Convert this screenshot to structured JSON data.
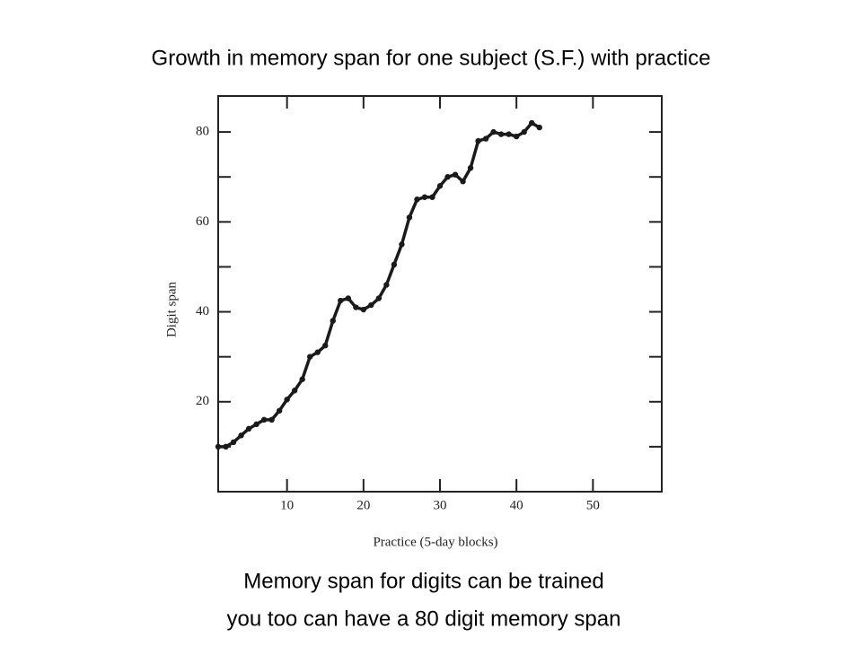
{
  "chart_data": {
    "type": "line",
    "title": "Growth in memory span for one subject (S.F.) with practice",
    "x_label": "Practice (5-day blocks)",
    "y_label": "Digit span",
    "caption": [
      "Memory span for digits can be trained",
      "you too can have a 80 digit memory span"
    ],
    "x": [
      1,
      2,
      3,
      4,
      5,
      6,
      7,
      8,
      9,
      10,
      11,
      12,
      13,
      14,
      15,
      16,
      17,
      18,
      19,
      20,
      21,
      22,
      23,
      24,
      25,
      26,
      27,
      28,
      29,
      30,
      31,
      32,
      33,
      34,
      35,
      36,
      37,
      38,
      39,
      40,
      41,
      42,
      43
    ],
    "values": [
      10,
      10,
      11,
      12.5,
      14,
      15,
      16,
      16,
      18,
      20.5,
      22.5,
      25,
      30,
      31,
      32.5,
      38,
      42.5,
      43,
      41,
      40.5,
      41.5,
      43,
      46,
      50.5,
      55,
      61,
      65,
      65.5,
      65.5,
      68,
      70,
      70.5,
      69,
      72,
      78,
      78.5,
      80,
      79.5,
      79.5,
      79,
      80,
      82,
      81
    ],
    "color": "#1a1a1a",
    "xlim": [
      1,
      59
    ],
    "ylim": [
      0,
      88
    ],
    "xticks": [
      10,
      20,
      30,
      40,
      50
    ],
    "yticks": [
      20,
      40,
      60,
      80
    ],
    "yticks_minor": [
      10,
      30,
      50,
      70
    ]
  }
}
